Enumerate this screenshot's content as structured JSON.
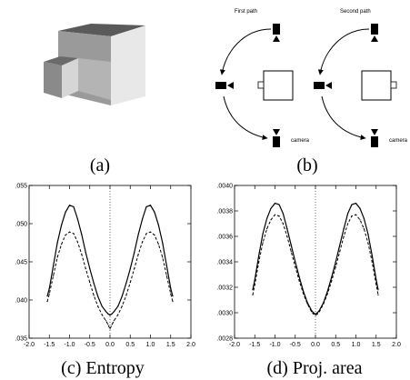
{
  "captions": {
    "a": "(a)",
    "b": "(b)",
    "c": "(c) Entropy",
    "d": "(d) Proj. area"
  },
  "panel_b": {
    "first_path_label": "First path",
    "second_path_label": "Second path",
    "camera_label": "camera"
  },
  "chart_data": [
    {
      "type": "line",
      "panel": "c",
      "title": "",
      "xlabel": "",
      "ylabel": "",
      "xlim": [
        -2.0,
        2.0
      ],
      "ylim": [
        0.035,
        0.055
      ],
      "xticks": [
        "-2.0",
        "-1.5",
        "-1.0",
        "-0.5",
        "0.0",
        "0.5",
        "1.0",
        "1.5",
        "2.0"
      ],
      "yticks": [
        ".035",
        ".040",
        ".045",
        ".050",
        ".055"
      ],
      "reference_line_x": 0.0,
      "series": [
        {
          "style": "solid",
          "x": [
            -1.55,
            -1.5,
            -1.4,
            -1.3,
            -1.2,
            -1.1,
            -1.0,
            -0.9,
            -0.8,
            -0.7,
            -0.6,
            -0.5,
            -0.4,
            -0.3,
            -0.2,
            -0.1,
            -0.05,
            0.0,
            0.05,
            0.1,
            0.2,
            0.3,
            0.4,
            0.5,
            0.6,
            0.7,
            0.8,
            0.9,
            1.0,
            1.1,
            1.2,
            1.3,
            1.4,
            1.5,
            1.55
          ],
          "y": [
            0.0405,
            0.0415,
            0.0445,
            0.0475,
            0.0498,
            0.0515,
            0.0524,
            0.0522,
            0.0506,
            0.0486,
            0.0462,
            0.0441,
            0.0422,
            0.0405,
            0.0392,
            0.0385,
            0.0382,
            0.038,
            0.0382,
            0.0385,
            0.0392,
            0.0405,
            0.0422,
            0.0441,
            0.0462,
            0.0486,
            0.0506,
            0.0522,
            0.0524,
            0.0515,
            0.0498,
            0.0475,
            0.0445,
            0.0415,
            0.0405
          ]
        },
        {
          "style": "dashed",
          "x": [
            -1.55,
            -1.5,
            -1.4,
            -1.3,
            -1.2,
            -1.1,
            -1.0,
            -0.9,
            -0.8,
            -0.7,
            -0.6,
            -0.5,
            -0.4,
            -0.3,
            -0.2,
            -0.1,
            -0.05,
            0.0,
            0.05,
            0.1,
            0.2,
            0.3,
            0.4,
            0.5,
            0.6,
            0.7,
            0.8,
            0.9,
            1.0,
            1.1,
            1.2,
            1.3,
            1.4,
            1.5,
            1.55
          ],
          "y": [
            0.0398,
            0.0408,
            0.0432,
            0.0456,
            0.0473,
            0.0485,
            0.0489,
            0.0487,
            0.0476,
            0.046,
            0.0441,
            0.0423,
            0.0406,
            0.0392,
            0.0381,
            0.0373,
            0.0368,
            0.0362,
            0.0368,
            0.0373,
            0.0381,
            0.0392,
            0.0406,
            0.0423,
            0.0441,
            0.046,
            0.0476,
            0.0487,
            0.0489,
            0.0485,
            0.0473,
            0.0456,
            0.0432,
            0.0408,
            0.0398
          ]
        }
      ]
    },
    {
      "type": "line",
      "panel": "d",
      "title": "",
      "xlabel": "",
      "ylabel": "",
      "xlim": [
        -2.0,
        2.0
      ],
      "ylim": [
        0.0028,
        0.004
      ],
      "xticks": [
        "-2.0",
        "-1.5",
        "-1.0",
        "-0.5",
        "0.0",
        "0.5",
        "1.0",
        "1.5",
        "2.0"
      ],
      "yticks": [
        ".0028",
        ".0030",
        ".0032",
        ".0034",
        ".0036",
        ".0038",
        ".0040"
      ],
      "reference_line_x": 0.0,
      "series": [
        {
          "style": "solid",
          "x": [
            -1.55,
            -1.5,
            -1.4,
            -1.3,
            -1.2,
            -1.1,
            -1.0,
            -0.9,
            -0.8,
            -0.7,
            -0.6,
            -0.5,
            -0.4,
            -0.3,
            -0.2,
            -0.1,
            -0.05,
            0.0,
            0.05,
            0.1,
            0.2,
            0.3,
            0.4,
            0.5,
            0.6,
            0.7,
            0.8,
            0.9,
            1.0,
            1.1,
            1.2,
            1.3,
            1.4,
            1.5,
            1.55
          ],
          "y": [
            0.00318,
            0.00326,
            0.00345,
            0.00362,
            0.00374,
            0.00382,
            0.00386,
            0.00385,
            0.00378,
            0.00366,
            0.00353,
            0.0034,
            0.00328,
            0.00317,
            0.00308,
            0.00302,
            0.003,
            0.00299,
            0.003,
            0.00302,
            0.00308,
            0.00317,
            0.00328,
            0.0034,
            0.00353,
            0.00366,
            0.00378,
            0.00385,
            0.00386,
            0.00382,
            0.00374,
            0.00362,
            0.00345,
            0.00326,
            0.00318
          ]
        },
        {
          "style": "dashed",
          "x": [
            -1.55,
            -1.5,
            -1.4,
            -1.3,
            -1.2,
            -1.1,
            -1.0,
            -0.9,
            -0.8,
            -0.7,
            -0.6,
            -0.5,
            -0.4,
            -0.3,
            -0.2,
            -0.1,
            -0.05,
            0.0,
            0.05,
            0.1,
            0.2,
            0.3,
            0.4,
            0.5,
            0.6,
            0.7,
            0.8,
            0.9,
            1.0,
            1.1,
            1.2,
            1.3,
            1.4,
            1.5,
            1.55
          ],
          "y": [
            0.00314,
            0.00322,
            0.0034,
            0.00355,
            0.00366,
            0.00373,
            0.00377,
            0.00376,
            0.0037,
            0.0036,
            0.00348,
            0.00336,
            0.00325,
            0.00315,
            0.00307,
            0.00301,
            0.00299,
            0.00298,
            0.00299,
            0.00301,
            0.00307,
            0.00315,
            0.00325,
            0.00336,
            0.00348,
            0.0036,
            0.0037,
            0.00376,
            0.00377,
            0.00373,
            0.00366,
            0.00355,
            0.0034,
            0.00322,
            0.00314
          ]
        }
      ]
    }
  ]
}
